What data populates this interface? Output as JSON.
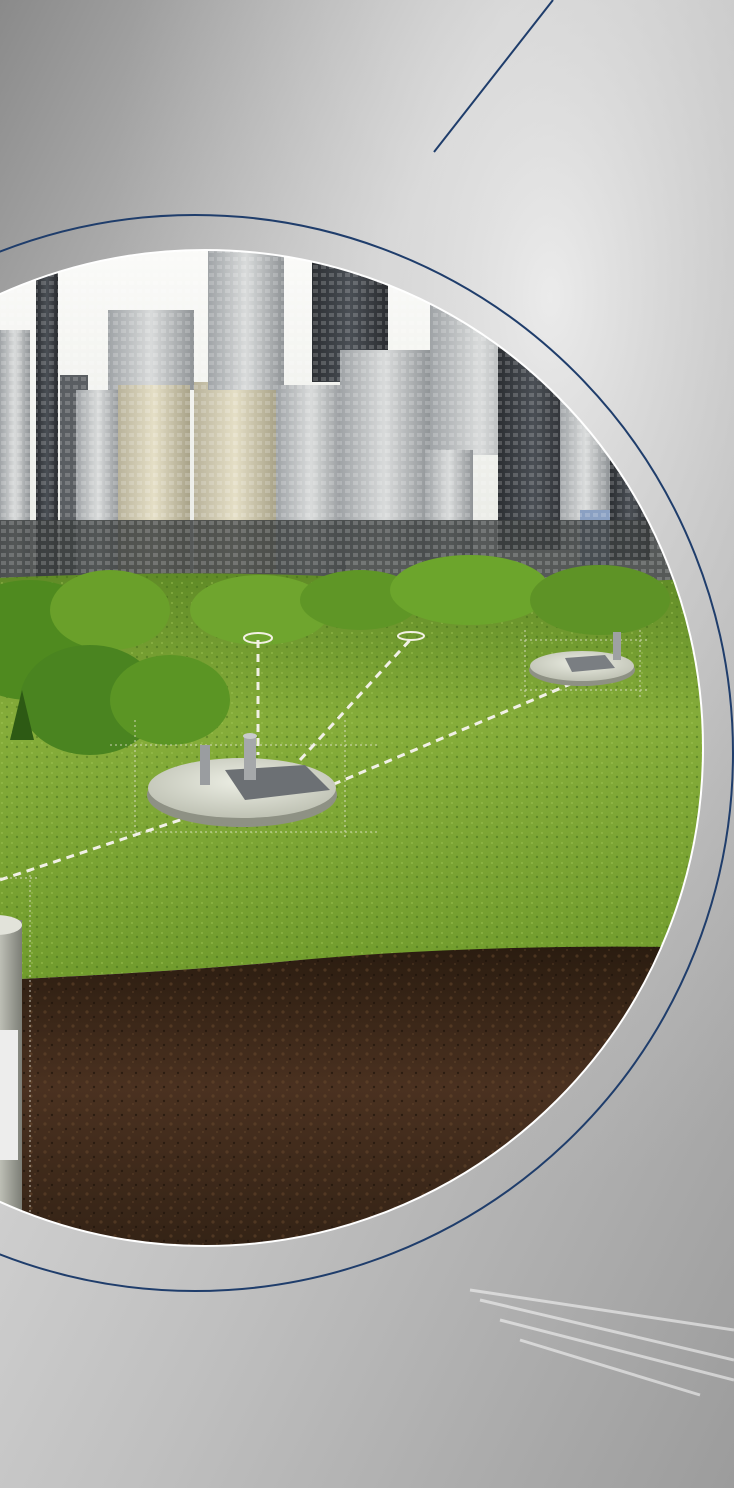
{
  "scene": {
    "colors": {
      "accent_line": "#1f3d6b",
      "sky": "#f4f4f2",
      "grass_light": "#8fb640",
      "grass_dark": "#4e7a1e",
      "soil": "#3a2616",
      "concrete": "#cfcfcd",
      "chamber": "#d9dad2"
    },
    "icons": [
      "city-skyline",
      "underground-storage-tank",
      "manhole-cover",
      "vent-pipe"
    ]
  }
}
